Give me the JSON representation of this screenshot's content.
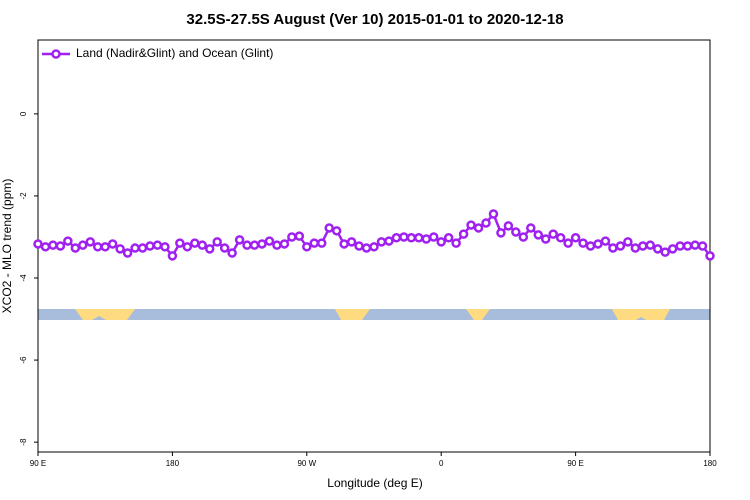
{
  "chart_data": {
    "type": "line",
    "title": "32.5S-27.5S August (Ver 10)   2015-01-01 to 2020-12-18",
    "x_label": "Longitude (deg E)",
    "y_label": "XCO2 - MLO trend (ppm)",
    "x": [
      90,
      95,
      100,
      105,
      110,
      115,
      120,
      125,
      130,
      135,
      140,
      145,
      150,
      155,
      160,
      165,
      170,
      175,
      180,
      185,
      190,
      195,
      200,
      205,
      210,
      215,
      220,
      225,
      230,
      235,
      240,
      245,
      250,
      255,
      260,
      265,
      270,
      275,
      280,
      285,
      290,
      295,
      300,
      305,
      310,
      315,
      320,
      325,
      330,
      335,
      340,
      345,
      350,
      355,
      360,
      365,
      370,
      375,
      380,
      385,
      390,
      395,
      400,
      405,
      410,
      415,
      420,
      425,
      430,
      435,
      440,
      445,
      450,
      455,
      460,
      465,
      470,
      475,
      480,
      485,
      490,
      495,
      500,
      505,
      510,
      515,
      520,
      525,
      530,
      535,
      540
    ],
    "series": [
      {
        "name": "Land (Nadir&Glint) and Ocean (Glint)",
        "color": "#a020f0",
        "values": [
          -3.17,
          -3.24,
          -3.2,
          -3.22,
          -3.1,
          -3.27,
          -3.2,
          -3.12,
          -3.24,
          -3.24,
          -3.17,
          -3.29,
          -3.39,
          -3.27,
          -3.27,
          -3.22,
          -3.2,
          -3.24,
          -3.46,
          -3.15,
          -3.24,
          -3.15,
          -3.2,
          -3.29,
          -3.12,
          -3.27,
          -3.39,
          -3.07,
          -3.2,
          -3.2,
          -3.17,
          -3.1,
          -3.2,
          -3.17,
          -3.0,
          -2.98,
          -3.24,
          -3.15,
          -3.15,
          -2.78,
          -2.85,
          -3.17,
          -3.12,
          -3.22,
          -3.27,
          -3.24,
          -3.12,
          -3.1,
          -3.02,
          -3.0,
          -3.02,
          -3.02,
          -3.05,
          -3.0,
          -3.12,
          -3.02,
          -3.15,
          -2.93,
          -2.71,
          -2.78,
          -2.66,
          -2.44,
          -2.9,
          -2.73,
          -2.88,
          -3.0,
          -2.78,
          -2.95,
          -3.05,
          -2.93,
          -3.02,
          -3.15,
          -3.02,
          -3.15,
          -3.22,
          -3.17,
          -3.1,
          -3.27,
          -3.22,
          -3.12,
          -3.27,
          -3.22,
          -3.2,
          -3.29,
          -3.37,
          -3.29,
          -3.22,
          -3.22,
          -3.2,
          -3.22,
          -3.46
        ]
      }
    ],
    "xlim": [
      90,
      540
    ],
    "xticks": [
      {
        "value": 90,
        "label": "90 E"
      },
      {
        "value": 180,
        "label": "180"
      },
      {
        "value": 270,
        "label": "90 W"
      },
      {
        "value": 360,
        "label": "0"
      },
      {
        "value": 450,
        "label": "90 E"
      },
      {
        "value": 540,
        "label": "180"
      }
    ],
    "ylim": [
      -8.24,
      1.8
    ],
    "yticks": [
      0,
      -2,
      -4,
      -6,
      -8
    ],
    "legend": "top-left"
  }
}
